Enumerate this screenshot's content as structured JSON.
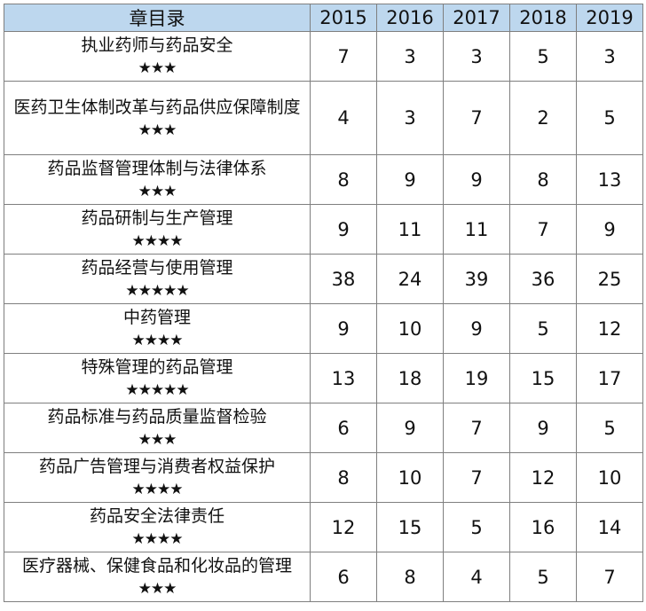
{
  "table": {
    "headers": [
      "章目录",
      "2015",
      "2016",
      "2017",
      "2018",
      "2019"
    ],
    "rows": [
      {
        "chapter": "执业药师与药品安全",
        "stars": "★★★",
        "values": [
          "7",
          "3",
          "3",
          "5",
          "3"
        ]
      },
      {
        "chapter": "医药卫生体制改革与药品供应保障制度",
        "stars": "★★★",
        "values": [
          "4",
          "3",
          "7",
          "2",
          "5"
        ]
      },
      {
        "chapter": "药品监督管理体制与法律体系",
        "stars": "★★★",
        "values": [
          "8",
          "9",
          "9",
          "8",
          "13"
        ]
      },
      {
        "chapter": "药品研制与生产管理",
        "stars": "★★★★",
        "values": [
          "9",
          "11",
          "11",
          "7",
          "9"
        ]
      },
      {
        "chapter": "药品经营与使用管理",
        "stars": "★★★★★",
        "values": [
          "38",
          "24",
          "39",
          "36",
          "25"
        ]
      },
      {
        "chapter": "中药管理",
        "stars": "★★★★",
        "values": [
          "9",
          "10",
          "9",
          "5",
          "12"
        ]
      },
      {
        "chapter": "特殊管理的药品管理",
        "stars": "★★★★★",
        "values": [
          "13",
          "18",
          "19",
          "15",
          "17"
        ]
      },
      {
        "chapter": "药品标准与药品质量监督检验",
        "stars": "★★★",
        "values": [
          "6",
          "9",
          "7",
          "9",
          "5"
        ]
      },
      {
        "chapter": "药品广告管理与消费者权益保护",
        "stars": "★★★★",
        "values": [
          "8",
          "10",
          "7",
          "12",
          "10"
        ]
      },
      {
        "chapter": "药品安全法律责任",
        "stars": "★★★★",
        "values": [
          "12",
          "15",
          "5",
          "16",
          "14"
        ]
      },
      {
        "chapter": "医疗器械、保健食品和化妆品的管理",
        "stars": "★★★",
        "values": [
          "6",
          "8",
          "4",
          "5",
          "7"
        ]
      }
    ]
  }
}
